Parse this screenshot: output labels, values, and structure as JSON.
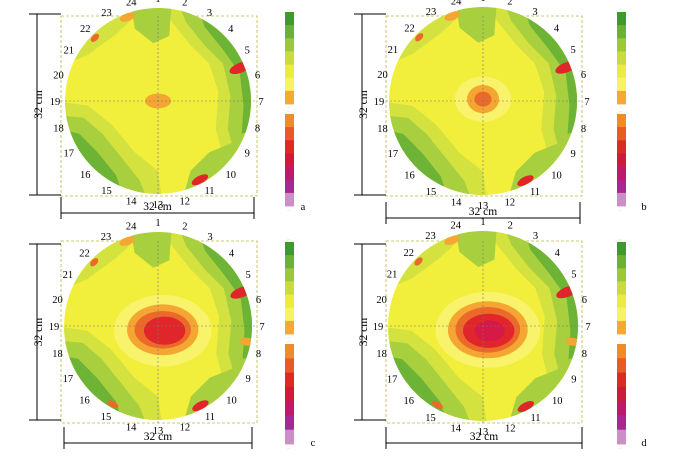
{
  "panels": [
    {
      "id": "a",
      "letter": "a"
    },
    {
      "id": "b",
      "letter": "b"
    },
    {
      "id": "c",
      "letter": "c"
    },
    {
      "id": "d",
      "letter": "d"
    }
  ],
  "dimensions": {
    "width_label": "32 cm",
    "height_label": "32 cm"
  },
  "sensor_labels": [
    "1",
    "2",
    "3",
    "4",
    "5",
    "6",
    "7",
    "8",
    "9",
    "10",
    "11",
    "12",
    "13",
    "14",
    "15",
    "16",
    "17",
    "18",
    "19",
    "20",
    "21",
    "22",
    "23",
    "24"
  ],
  "colorbar_colors": {
    "upper": [
      "#3f9a2e",
      "#6cb133",
      "#9cc83a",
      "#c9dc3c",
      "#ecec3e",
      "#f8f460",
      "#f6a831"
    ],
    "lower": [
      "#f08b2a",
      "#e95a25",
      "#dd2a23",
      "#cf1a3c",
      "#c0186b",
      "#a8288f",
      "#c98fc6"
    ]
  },
  "colorbar_ticks": {
    "upper_top": "...",
    "upper_bottom": "...",
    "lower_top": "...",
    "lower_bottom": "..."
  },
  "map_colors": {
    "yellow": "#f2ef3c",
    "light_yellow": "#f8f36a",
    "yellow_green": "#d4e240",
    "light_green": "#a8cf3e",
    "green": "#6db336",
    "orange": "#f5a532",
    "red_orange": "#eb6a2a",
    "red": "#e0262a",
    "crimson": "#d61946",
    "pink": "#e02a5c"
  }
}
